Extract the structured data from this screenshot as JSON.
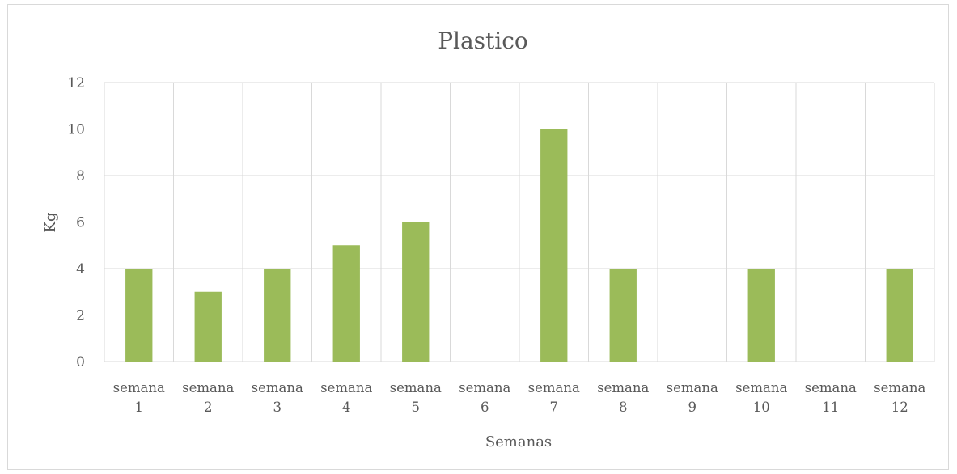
{
  "chart_data": {
    "type": "bar",
    "title": "Plastico",
    "xlabel": "Semanas",
    "ylabel": "Kg",
    "categories": [
      [
        "semana",
        "1"
      ],
      [
        "semana",
        "2"
      ],
      [
        "semana",
        "3"
      ],
      [
        "semana",
        "4"
      ],
      [
        "semana",
        "5"
      ],
      [
        "semana",
        "6"
      ],
      [
        "semana",
        "7"
      ],
      [
        "semana",
        "8"
      ],
      [
        "semana",
        "9"
      ],
      [
        "semana",
        "10"
      ],
      [
        "semana",
        "11"
      ],
      [
        "semana",
        "12"
      ]
    ],
    "values": [
      4,
      3,
      4,
      5,
      6,
      0,
      10,
      4,
      0,
      4,
      0,
      4
    ],
    "ylim": [
      0,
      12
    ],
    "yticks": [
      "0",
      "2",
      "4",
      "6",
      "8",
      "10",
      "12"
    ],
    "grid": true,
    "legend": "none",
    "bar_color": "#9bbb59",
    "grid_color": "#d9d9d9",
    "text_color": "#595959"
  }
}
